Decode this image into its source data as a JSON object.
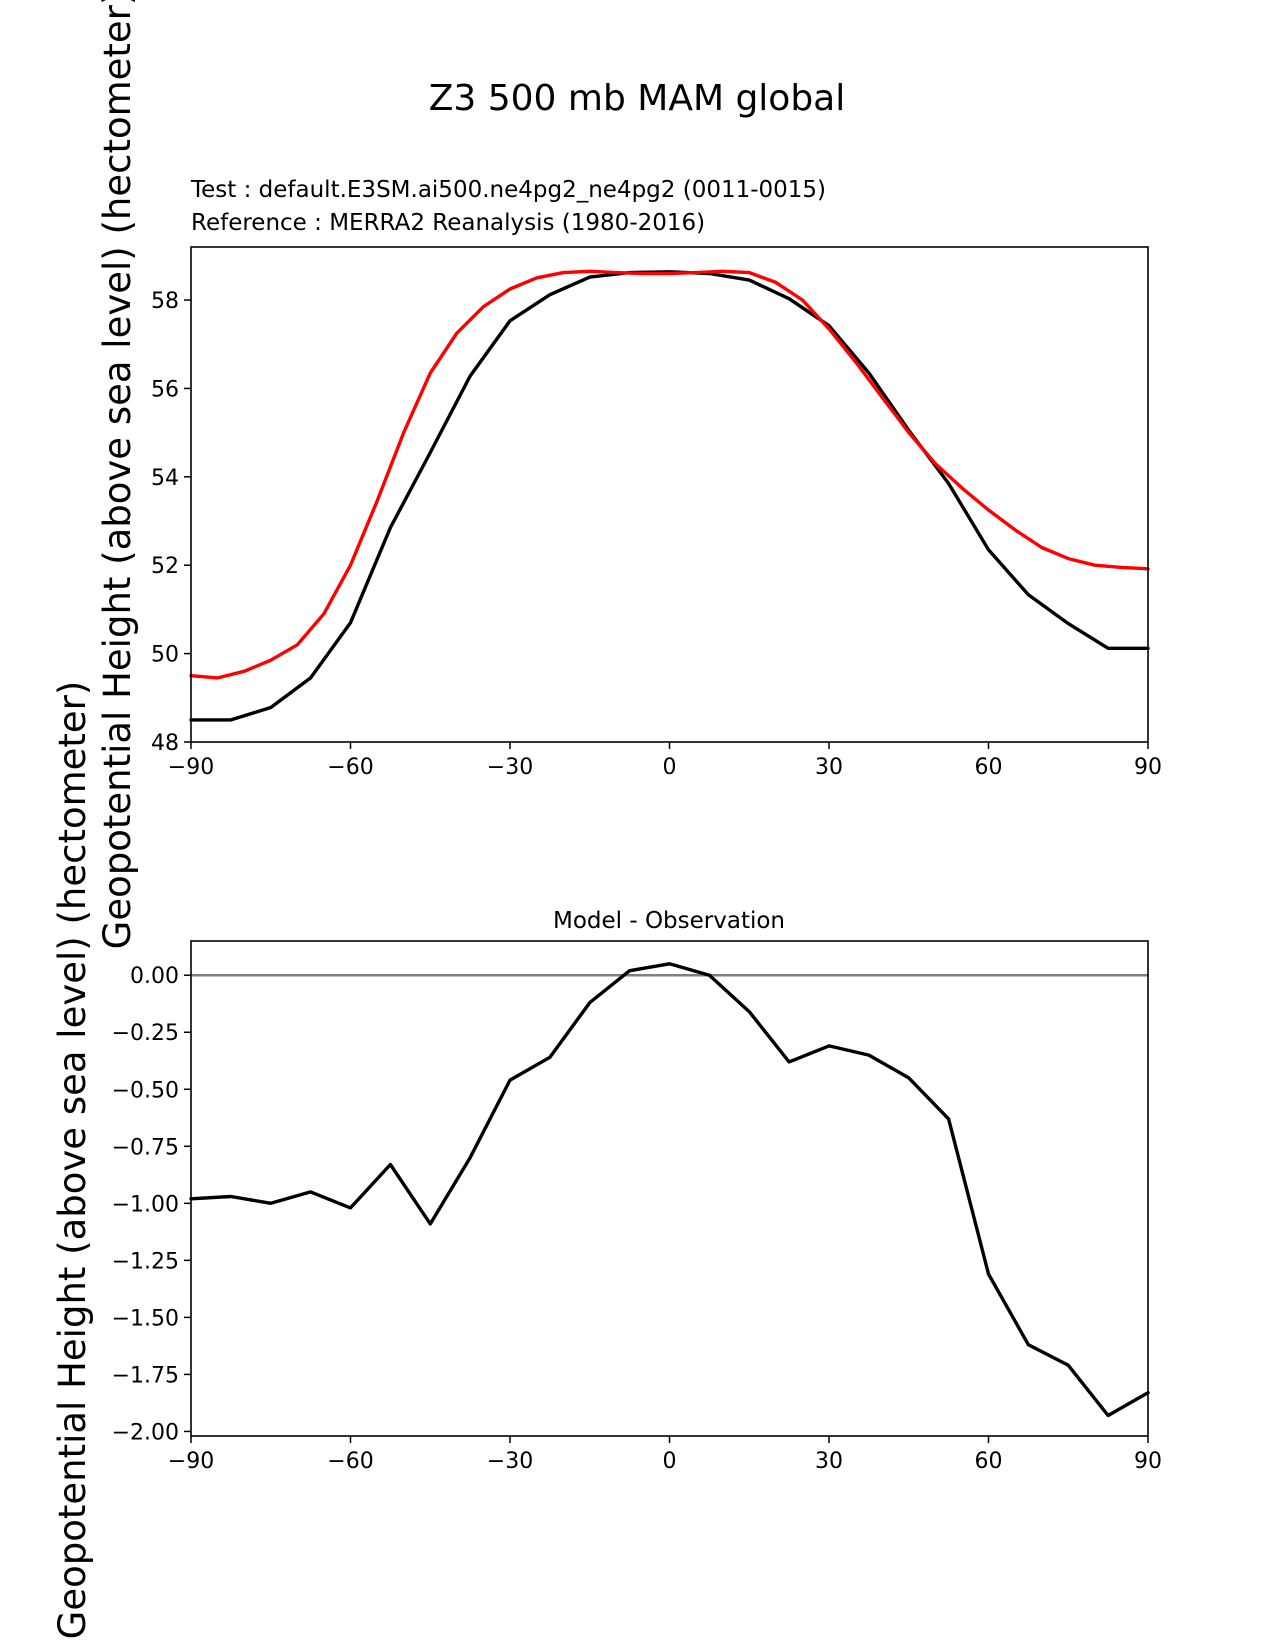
{
  "figure": {
    "suptitle": "Z3 500 mb MAM global"
  },
  "colors": {
    "test": "#000000",
    "reference": "#ff0000",
    "zero_line": "#808080"
  },
  "chart_data": [
    {
      "type": "line",
      "test_label": "Test : default.E3SM.ai500.ne4pg2_ne4pg2 (0011-0015)",
      "reference_label": "Reference : MERRA2 Reanalysis (1980-2016)",
      "ylabel": "Geopotential Height (above sea level) (hectometer)",
      "xlim": [
        -90,
        90
      ],
      "ylim": [
        48,
        59.2
      ],
      "xticks": [
        -90,
        -60,
        -30,
        0,
        30,
        60,
        90
      ],
      "xtick_labels": [
        "−90",
        "−60",
        "−30",
        "0",
        "30",
        "60",
        "90"
      ],
      "yticks": [
        48,
        50,
        52,
        54,
        56,
        58
      ],
      "ytick_labels": [
        "48",
        "50",
        "52",
        "54",
        "56",
        "58"
      ],
      "series": [
        {
          "name": "Test",
          "color": "#000000",
          "x": [
            -90,
            -82.5,
            -75,
            -67.5,
            -60,
            -52.5,
            -45,
            -37.5,
            -30,
            -22.5,
            -15,
            -7.5,
            0,
            7.5,
            15,
            22.5,
            30,
            37.5,
            45,
            52.5,
            60,
            67.5,
            75,
            82.5,
            90
          ],
          "y": [
            48.5,
            48.5,
            48.78,
            49.45,
            50.7,
            52.85,
            54.55,
            56.28,
            57.53,
            58.12,
            58.52,
            58.62,
            58.64,
            58.6,
            58.45,
            58.03,
            57.42,
            56.35,
            55.05,
            53.85,
            52.35,
            51.33,
            50.68,
            50.12,
            50.12
          ]
        },
        {
          "name": "Reference",
          "color": "#ff0000",
          "x": [
            -90,
            -85,
            -80,
            -75,
            -70,
            -65,
            -60,
            -55,
            -50,
            -45,
            -40,
            -35,
            -30,
            -25,
            -20,
            -15,
            -10,
            -5,
            0,
            5,
            10,
            15,
            20,
            25,
            30,
            35,
            40,
            45,
            50,
            55,
            60,
            65,
            70,
            75,
            80,
            85,
            90
          ],
          "y": [
            49.5,
            49.45,
            49.6,
            49.85,
            50.2,
            50.9,
            52.0,
            53.45,
            55.0,
            56.35,
            57.25,
            57.85,
            58.25,
            58.5,
            58.62,
            58.65,
            58.62,
            58.6,
            58.6,
            58.62,
            58.65,
            58.62,
            58.4,
            58.0,
            57.35,
            56.6,
            55.8,
            55.0,
            54.3,
            53.75,
            53.25,
            52.8,
            52.4,
            52.15,
            52.0,
            51.95,
            51.92
          ]
        }
      ]
    },
    {
      "type": "line",
      "title": "Model - Observation",
      "ylabel": "Geopotential Height (above sea level) (hectometer)",
      "xlim": [
        -90,
        90
      ],
      "ylim": [
        -2.02,
        0.15
      ],
      "xticks": [
        -90,
        -60,
        -30,
        0,
        30,
        60,
        90
      ],
      "xtick_labels": [
        "−90",
        "−60",
        "−30",
        "0",
        "30",
        "60",
        "90"
      ],
      "yticks": [
        0,
        -0.25,
        -0.5,
        -0.75,
        -1.0,
        -1.25,
        -1.5,
        -1.75,
        -2.0
      ],
      "ytick_labels": [
        "0.00",
        "−0.25",
        "−0.50",
        "−0.75",
        "−1.00",
        "−1.25",
        "−1.50",
        "−1.75",
        "−2.00"
      ],
      "zero_line": 0,
      "series": [
        {
          "name": "Model - Observation",
          "color": "#000000",
          "x": [
            -90,
            -82.5,
            -75,
            -67.5,
            -60,
            -52.5,
            -45,
            -37.5,
            -30,
            -22.5,
            -15,
            -7.5,
            0,
            7.5,
            15,
            22.5,
            30,
            37.5,
            45,
            52.5,
            60,
            67.5,
            75,
            82.5,
            90
          ],
          "y": [
            -0.98,
            -0.97,
            -1.0,
            -0.95,
            -1.02,
            -0.83,
            -1.09,
            -0.8,
            -0.46,
            -0.36,
            -0.12,
            0.02,
            0.05,
            0.0,
            -0.16,
            -0.38,
            -0.31,
            -0.35,
            -0.45,
            -0.63,
            -1.31,
            -1.62,
            -1.71,
            -1.93,
            -1.83
          ]
        }
      ]
    }
  ]
}
